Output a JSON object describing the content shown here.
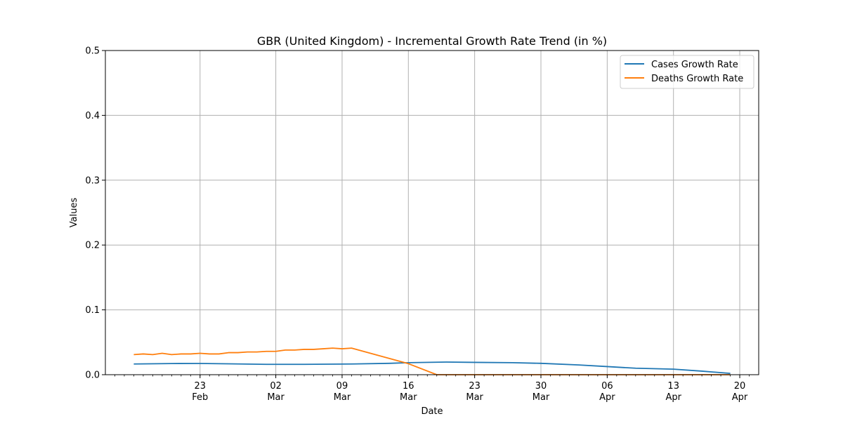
{
  "chart_data": {
    "type": "line",
    "title": "GBR (United Kingdom) - Incremental Growth Rate Trend (in %)",
    "xlabel": "Date",
    "ylabel": "Values",
    "xlim": [
      "2020-02-13",
      "2020-04-22"
    ],
    "ylim": [
      0,
      0.5
    ],
    "grid": true,
    "legend_position": "top-right",
    "y_ticks": [
      "0.0",
      "0.1",
      "0.2",
      "0.3",
      "0.4",
      "0.5"
    ],
    "x_ticks": [
      {
        "date": "2020-02-23",
        "day": "23",
        "month": "Feb"
      },
      {
        "date": "2020-03-02",
        "day": "02",
        "month": "Mar"
      },
      {
        "date": "2020-03-09",
        "day": "09",
        "month": "Mar"
      },
      {
        "date": "2020-03-16",
        "day": "16",
        "month": "Mar"
      },
      {
        "date": "2020-03-23",
        "day": "23",
        "month": "Mar"
      },
      {
        "date": "2020-03-30",
        "day": "30",
        "month": "Mar"
      },
      {
        "date": "2020-04-06",
        "day": "06",
        "month": "Apr"
      },
      {
        "date": "2020-04-13",
        "day": "13",
        "month": "Apr"
      },
      {
        "date": "2020-04-20",
        "day": "20",
        "month": "Apr"
      }
    ],
    "series": [
      {
        "name": "Cases Growth Rate",
        "color": "#1f77b4",
        "points": [
          [
            "2020-02-16",
            0.0165
          ],
          [
            "2020-02-20",
            0.0172
          ],
          [
            "2020-02-23",
            0.0173
          ],
          [
            "2020-02-26",
            0.0168
          ],
          [
            "2020-03-01",
            0.016
          ],
          [
            "2020-03-05",
            0.016
          ],
          [
            "2020-03-10",
            0.0165
          ],
          [
            "2020-03-14",
            0.0175
          ],
          [
            "2020-03-16",
            0.0185
          ],
          [
            "2020-03-20",
            0.0195
          ],
          [
            "2020-03-23",
            0.019
          ],
          [
            "2020-03-27",
            0.0185
          ],
          [
            "2020-03-30",
            0.0175
          ],
          [
            "2020-04-03",
            0.015
          ],
          [
            "2020-04-06",
            0.0125
          ],
          [
            "2020-04-09",
            0.01
          ],
          [
            "2020-04-13",
            0.0085
          ],
          [
            "2020-04-16",
            0.0055
          ],
          [
            "2020-04-19",
            0.002
          ]
        ]
      },
      {
        "name": "Deaths Growth Rate",
        "color": "#ff7f0e",
        "points": [
          [
            "2020-02-16",
            0.031
          ],
          [
            "2020-02-17",
            0.032
          ],
          [
            "2020-02-18",
            0.031
          ],
          [
            "2020-02-19",
            0.033
          ],
          [
            "2020-02-20",
            0.031
          ],
          [
            "2020-02-21",
            0.032
          ],
          [
            "2020-02-22",
            0.032
          ],
          [
            "2020-02-23",
            0.033
          ],
          [
            "2020-02-24",
            0.032
          ],
          [
            "2020-02-25",
            0.032
          ],
          [
            "2020-02-26",
            0.034
          ],
          [
            "2020-02-27",
            0.034
          ],
          [
            "2020-02-28",
            0.035
          ],
          [
            "2020-02-29",
            0.035
          ],
          [
            "2020-03-01",
            0.036
          ],
          [
            "2020-03-02",
            0.036
          ],
          [
            "2020-03-03",
            0.038
          ],
          [
            "2020-03-04",
            0.038
          ],
          [
            "2020-03-05",
            0.039
          ],
          [
            "2020-03-06",
            0.039
          ],
          [
            "2020-03-07",
            0.04
          ],
          [
            "2020-03-08",
            0.041
          ],
          [
            "2020-03-09",
            0.04
          ],
          [
            "2020-03-10",
            0.041
          ],
          [
            "2020-03-16",
            0.017
          ],
          [
            "2020-03-19",
            0.0
          ],
          [
            "2020-04-19",
            0.0
          ]
        ]
      }
    ]
  }
}
